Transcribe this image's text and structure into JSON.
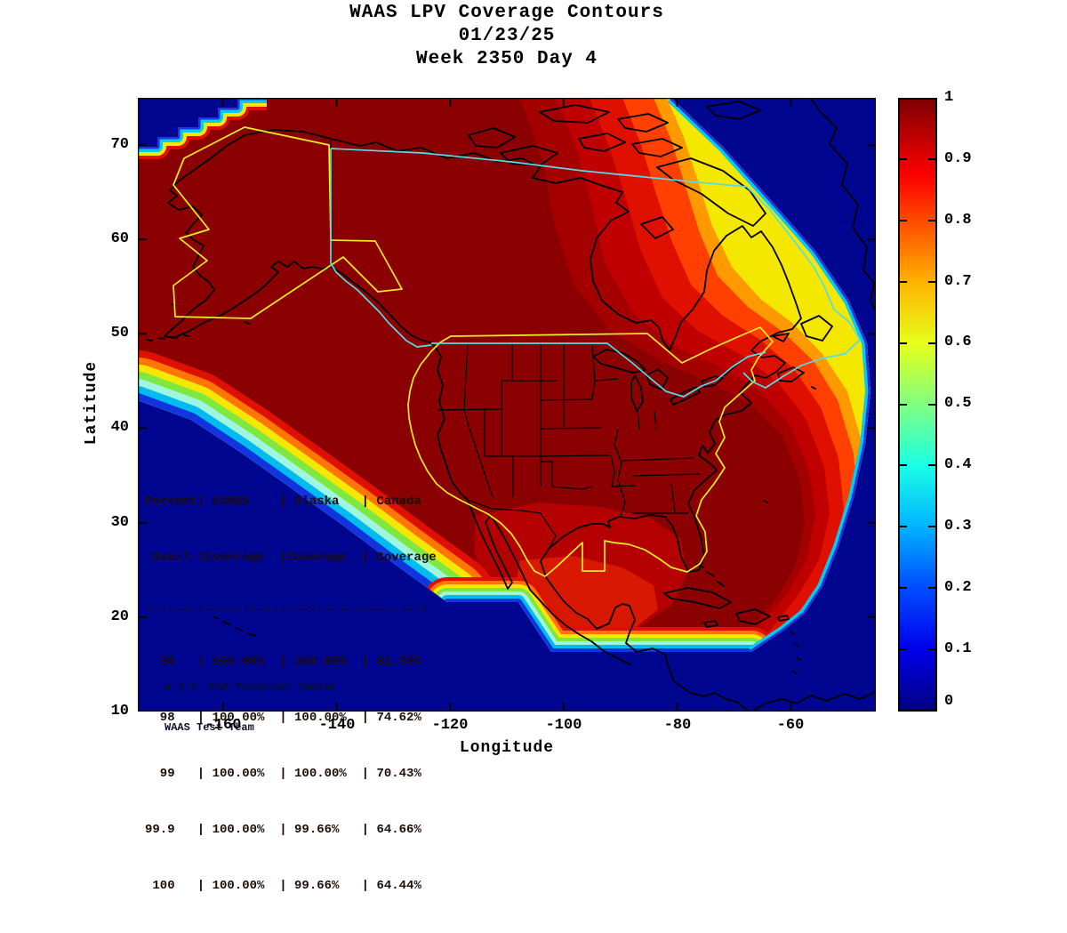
{
  "title": {
    "line1": "WAAS LPV Coverage Contours",
    "line2": "01/23/25",
    "line3": "Week 2350 Day 4"
  },
  "axes": {
    "xlabel": "Longitude",
    "ylabel": "Latitude",
    "xticks": [
      "-160",
      "-140",
      "-120",
      "-100",
      "-80",
      "-60"
    ],
    "yticks": [
      "70",
      "60",
      "50",
      "40",
      "30",
      "20",
      "10"
    ]
  },
  "colorbar": {
    "ticks": [
      "1",
      "0.9",
      "0.8",
      "0.7",
      "0.6",
      "0.5",
      "0.4",
      "0.3",
      "0.2",
      "0.1",
      "0"
    ]
  },
  "coverage_table": {
    "lines": [
      "Percent| CONUS    | Alaska   | Canada",
      " Avail.|Coverage  |Coverage  | Coverage",
      "--------------------------------------",
      "  95   | 100.00%  | 100.00%  | 81.39%",
      "  98   | 100.00%  | 100.00%  | 74.62%",
      "  99   | 100.00%  | 100.00%  | 70.43%",
      "99.9   | 100.00%  | 99.66%   | 64.66%",
      " 100   | 100.00%  | 99.66%   | 64.44%"
    ]
  },
  "credits": {
    "line1": "W.J.H. FAA Technical Center",
    "line2": "WAAS Test Team"
  },
  "chart_data": {
    "type": "heatmap",
    "subtype": "filled-contour-coverage-map",
    "title": "WAAS LPV Coverage Contours",
    "date": "01/23/25",
    "gps_week": "Week 2350 Day 4",
    "xlabel": "Longitude",
    "ylabel": "Latitude",
    "xlim": [
      -175,
      -45
    ],
    "ylim": [
      10,
      75
    ],
    "xticks": [
      -160,
      -140,
      -120,
      -100,
      -80,
      -60
    ],
    "yticks": [
      10,
      20,
      30,
      40,
      50,
      60,
      70
    ],
    "colorbar": {
      "min": 0,
      "max": 1,
      "ticks": [
        0,
        0.1,
        0.2,
        0.3,
        0.4,
        0.5,
        0.6,
        0.7,
        0.8,
        0.9,
        1
      ],
      "colormap": "jet",
      "position": "right"
    },
    "grid": false,
    "regions": [
      {
        "area": "CONUS, Alaska, western and central Canada",
        "coverage_value": "~1.0 dark-red plateau"
      },
      {
        "area": "Northeast Canada toward Greenland",
        "coverage_value": "banded falloff 0.95 to 0.6"
      },
      {
        "area": "Pacific SW, south of ~17N, NE Atlantic",
        "coverage_value": "sharp falloff to 0 ocean background"
      }
    ],
    "coverage_statistics": {
      "columns": [
        "Percent Avail.",
        "CONUS Coverage",
        "Alaska Coverage",
        "Canada Coverage"
      ],
      "rows": [
        [
          "95",
          "100.00%",
          "100.00%",
          "81.39%"
        ],
        [
          "98",
          "100.00%",
          "100.00%",
          "74.62%"
        ],
        [
          "99",
          "100.00%",
          "100.00%",
          "70.43%"
        ],
        [
          "99.9",
          "100.00%",
          "99.66%",
          "64.66%"
        ],
        [
          "100",
          "100.00%",
          "99.66%",
          "64.44%"
        ]
      ]
    },
    "annotations": [
      "W.J.H. FAA Technical Center",
      "WAAS Test Team"
    ],
    "map_overlays": [
      "North America coastlines and state borders (black)",
      "WAAS CONUS and Alaska service volume boundaries (yellow)",
      "Canada service volume boundary (cyan)"
    ]
  }
}
